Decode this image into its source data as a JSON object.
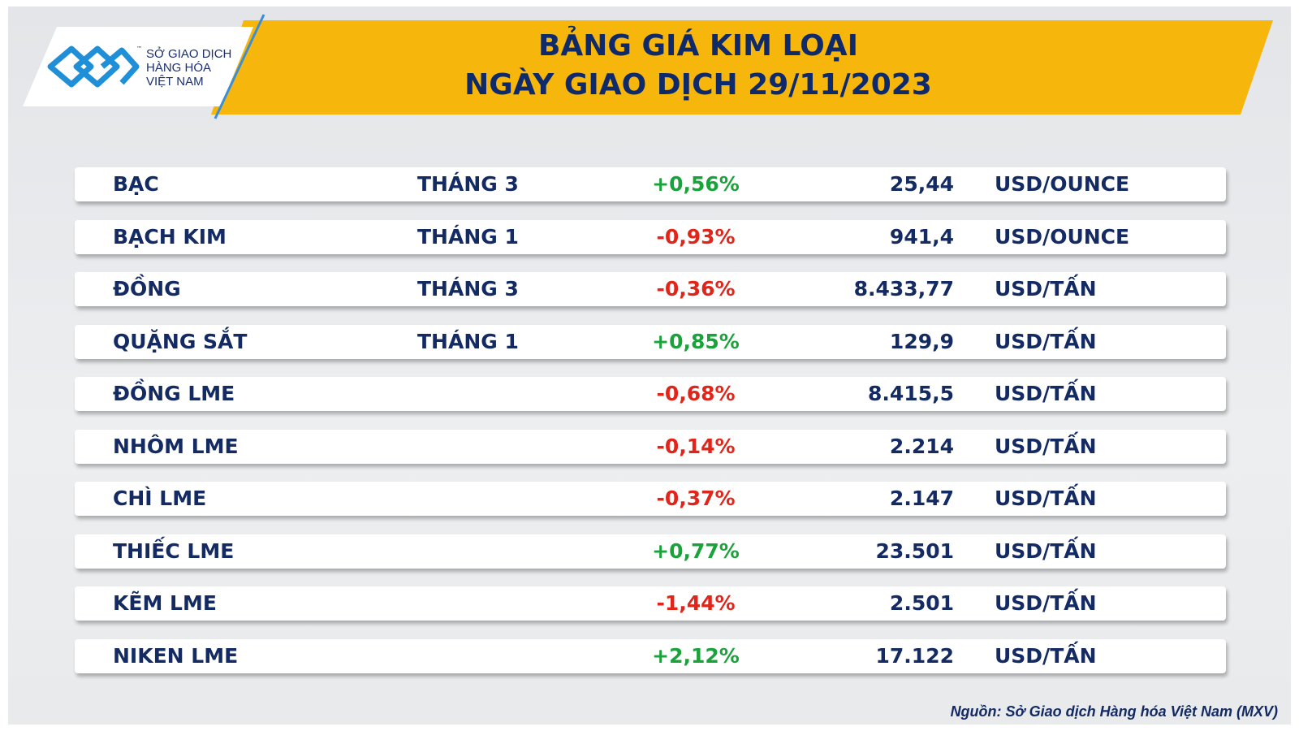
{
  "header": {
    "logo": {
      "mark": "™",
      "lines": [
        "SỞ GIAO DỊCH",
        "HÀNG HÓA",
        "VIỆT NAM"
      ]
    },
    "title": [
      "BẢNG GIÁ KIM LOẠI",
      "NGÀY GIAO DỊCH 29/11/2023"
    ]
  },
  "table": {
    "rows": [
      [
        "BẠC",
        "THÁNG 3",
        "+0,56%",
        "25,44",
        "USD/OUNCE"
      ],
      [
        "BẠCH KIM",
        "THÁNG 1",
        "-0,93%",
        "941,4",
        "USD/OUNCE"
      ],
      [
        "ĐỒNG",
        "THÁNG 3",
        "-0,36%",
        "8.433,77",
        "USD/TẤN"
      ],
      [
        "QUẶNG SẮT",
        "THÁNG 1",
        "+0,85%",
        "129,9",
        "USD/TẤN"
      ],
      [
        "ĐỒNG LME",
        null,
        "-0,68%",
        "8.415,5",
        "USD/TẤN"
      ],
      [
        "NHÔM LME",
        null,
        "-0,14%",
        "2.214",
        "USD/TẤN"
      ],
      [
        "CHÌ LME",
        null,
        "-0,37%",
        "2.147",
        "USD/TẤN"
      ],
      [
        "THIẾC LME",
        null,
        "+0,77%",
        "23.501",
        "USD/TẤN"
      ],
      [
        "KẼM LME",
        null,
        "-1,44%",
        "2.501",
        "USD/TẤN"
      ],
      [
        "NIKEN LME",
        null,
        "+2,12%",
        "17.122",
        "USD/TẤN"
      ]
    ]
  },
  "source": "Nguồn: Sở Giao dịch Hàng hóa Việt Nam (MXV)"
}
